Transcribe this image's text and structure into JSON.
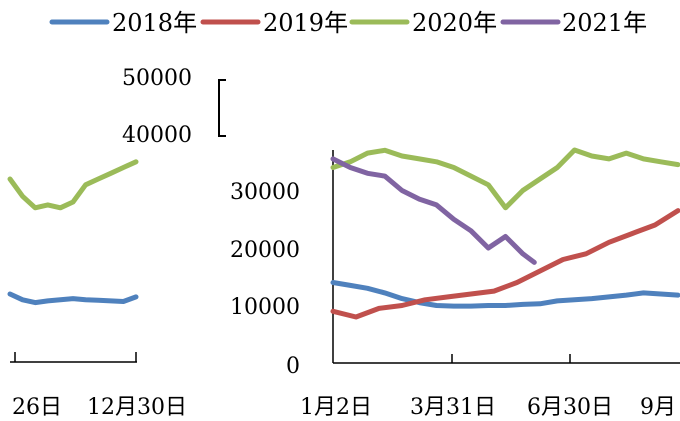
{
  "chart_data": {
    "type": "line",
    "title": "",
    "xlabel": "",
    "ylabel": "",
    "ylim": [
      0,
      50000
    ],
    "y_ticks": [
      "0",
      "10000",
      "20000",
      "30000",
      "40000",
      "50000"
    ],
    "legend_position": "top",
    "legend": [
      "2018年",
      "2019年",
      "2020年",
      "2021年"
    ],
    "x_tick_labels_left": [
      "26日",
      "12月30日"
    ],
    "x_tick_labels_right": [
      "1月2日",
      "3月31日",
      "6月30日",
      "9月"
    ],
    "colors": {
      "2018年": "#4f81bd",
      "2019年": "#c0504d",
      "2020年": "#9bbb59",
      "2021年": "#8064a2"
    },
    "left_panel": {
      "x_domain": [
        0,
        100
      ],
      "series": [
        {
          "name": "2020年",
          "x": [
            0,
            10,
            20,
            30,
            40,
            50,
            60,
            70,
            80,
            90,
            100
          ],
          "y": [
            32000,
            29000,
            27000,
            27500,
            27000,
            28000,
            31000,
            32000,
            33000,
            34000,
            35000
          ]
        },
        {
          "name": "2018年",
          "x": [
            0,
            10,
            20,
            30,
            40,
            50,
            60,
            70,
            80,
            90,
            100
          ],
          "y": [
            12000,
            11000,
            10500,
            10800,
            11000,
            11200,
            11000,
            10900,
            10800,
            10700,
            11500
          ]
        }
      ]
    },
    "right_panel": {
      "x_domain": [
        0,
        300
      ],
      "series": [
        {
          "name": "2020年",
          "x": [
            0,
            15,
            30,
            45,
            60,
            75,
            90,
            105,
            120,
            135,
            150,
            165,
            180,
            195,
            210,
            225,
            240,
            255,
            270,
            285,
            300
          ],
          "y": [
            34000,
            35000,
            36500,
            37000,
            36000,
            35500,
            35000,
            34000,
            32500,
            31000,
            27000,
            30000,
            32000,
            34000,
            37500,
            36000,
            35500,
            36500,
            35500,
            35000,
            34500
          ]
        },
        {
          "name": "2021年",
          "x": [
            0,
            15,
            30,
            45,
            60,
            75,
            90,
            105,
            120,
            135,
            150,
            165,
            175
          ],
          "y": [
            35500,
            34000,
            33000,
            32500,
            30000,
            28500,
            27500,
            25000,
            23000,
            20000,
            22000,
            19000,
            17500
          ]
        },
        {
          "name": "2018年",
          "x": [
            0,
            15,
            30,
            45,
            60,
            75,
            90,
            105,
            120,
            135,
            150,
            165,
            180,
            195,
            210,
            225,
            240,
            255,
            270,
            285,
            300
          ],
          "y": [
            14000,
            13500,
            13000,
            12200,
            11200,
            10500,
            10000,
            9900,
            9900,
            10000,
            10000,
            10200,
            10300,
            10800,
            11000,
            11200,
            11500,
            11800,
            12200,
            12000,
            11800
          ]
        },
        {
          "name": "2019年",
          "x": [
            0,
            20,
            40,
            60,
            80,
            100,
            120,
            140,
            160,
            180,
            200,
            220,
            240,
            260,
            280,
            300
          ],
          "y": [
            9000,
            8000,
            9500,
            10000,
            11000,
            11500,
            12000,
            12500,
            14000,
            16000,
            18000,
            19000,
            21000,
            22500,
            24000,
            26500
          ]
        }
      ]
    }
  }
}
